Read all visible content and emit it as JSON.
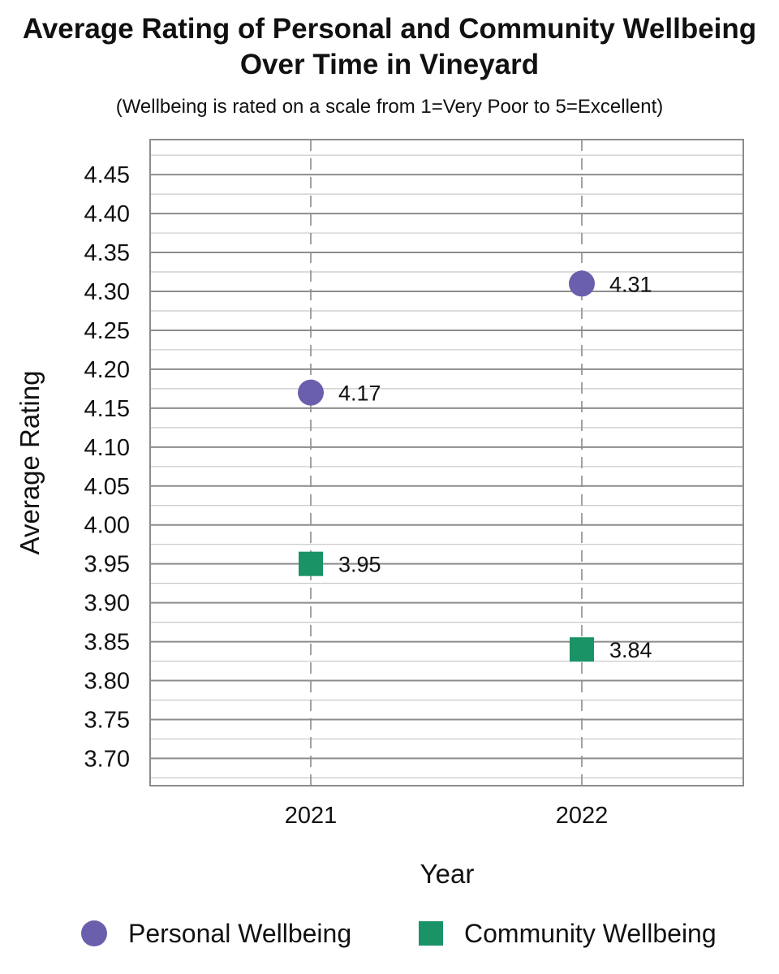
{
  "chart_data": {
    "type": "scatter",
    "title_line1": "Average Rating of Personal and Community Wellbeing",
    "title_line2": "Over Time in Vineyard",
    "subtitle": "(Wellbeing is rated on a scale from 1=Very Poor to 5=Excellent)",
    "xlabel": "Year",
    "ylabel": "Average Rating",
    "categories": [
      "2021",
      "2022"
    ],
    "ylim": [
      3.665,
      4.495
    ],
    "y_ticks": [
      "3.70",
      "3.75",
      "3.80",
      "3.85",
      "3.90",
      "3.95",
      "4.00",
      "4.05",
      "4.10",
      "4.15",
      "4.20",
      "4.25",
      "4.30",
      "4.35",
      "4.40",
      "4.45"
    ],
    "grid": true,
    "legend_position": "bottom",
    "series": [
      {
        "name": "Personal Wellbeing",
        "marker": "circle",
        "color": "#6a5fad",
        "values": [
          4.17,
          4.31
        ],
        "labels": [
          "4.17",
          "4.31"
        ]
      },
      {
        "name": "Community Wellbeing",
        "marker": "square",
        "color": "#1a9366",
        "values": [
          3.95,
          3.84
        ],
        "labels": [
          "3.95",
          "3.84"
        ]
      }
    ]
  }
}
